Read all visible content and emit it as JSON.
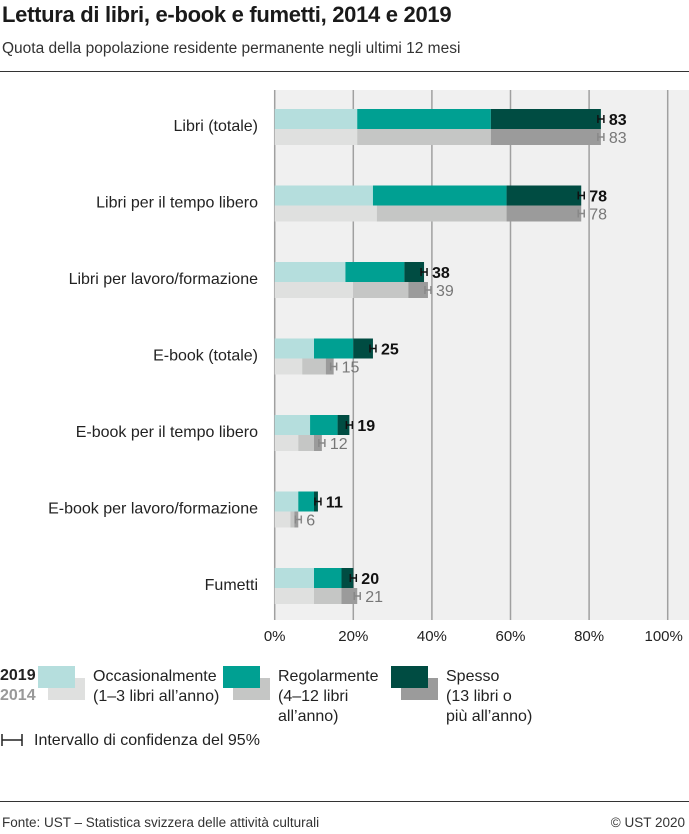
{
  "title": "Lettura di libri, e-book e fumetti, 2014 e 2019",
  "subtitle": "Quota della popolazione residente permanente negli ultimi 12 mesi",
  "chart_data": {
    "type": "bar",
    "orientation": "horizontal-stacked",
    "categories": [
      "Libri (totale)",
      "Libri per il tempo libero",
      "Libri per lavoro/formazione",
      "E-book (totale)",
      "E-book per il tempo libero",
      "E-book per lavoro/formazione",
      "Fumetti"
    ],
    "xlim": [
      0,
      100
    ],
    "xticks": [
      "0%",
      "20%",
      "40%",
      "60%",
      "80%",
      "100%"
    ],
    "grid": true,
    "series_groups": [
      {
        "year": "2019",
        "totals": [
          83,
          78,
          38,
          25,
          19,
          11,
          20
        ],
        "series": [
          {
            "name": "Occasionalmente (1–3 libri all'anno)",
            "color": "#b5dedd",
            "values": [
              21,
              25,
              18,
              10,
              9,
              6,
              10
            ]
          },
          {
            "name": "Regolarmente (4–12 libri all'anno)",
            "color": "#00a092",
            "values": [
              34,
              34,
              15,
              10,
              7,
              4,
              7
            ]
          },
          {
            "name": "Spesso (13 libri o più all'anno)",
            "color": "#004c42",
            "values": [
              28,
              19,
              5,
              5,
              3,
              1,
              3
            ]
          }
        ]
      },
      {
        "year": "2014",
        "totals": [
          83,
          78,
          39,
          15,
          12,
          6,
          21
        ],
        "series": [
          {
            "name": "Occasionalmente (1–3 libri all'anno)",
            "color": "#dfe0df",
            "values": [
              21,
              26,
              20,
              7,
              6,
              4,
              10
            ]
          },
          {
            "name": "Regolarmente (4–12 libri all'anno)",
            "color": "#c5c6c5",
            "values": [
              34,
              33,
              14,
              6,
              4,
              1,
              7
            ]
          },
          {
            "name": "Spesso (13 libri o più all'anno)",
            "color": "#9b9b9b",
            "values": [
              28,
              19,
              5,
              2,
              2,
              1,
              4
            ]
          }
        ]
      }
    ]
  },
  "legend": {
    "year_2019": "2019",
    "year_2014": "2014",
    "items": [
      {
        "line1": "Occasionalmente",
        "line2": "(1–3 libri all’anno)",
        "line3": ""
      },
      {
        "line1": "Regolarmente",
        "line2": "(4–12 libri",
        "line3": "all’anno)"
      },
      {
        "line1": "Spesso",
        "line2": "(13 libri o",
        "line3": "più all’anno)"
      }
    ],
    "ci": "Intervallo di confidenza del 95%"
  },
  "footer": {
    "source": "Fonte: UST – Statistica svizzera delle attività culturali",
    "copyright": "© UST 2020"
  }
}
